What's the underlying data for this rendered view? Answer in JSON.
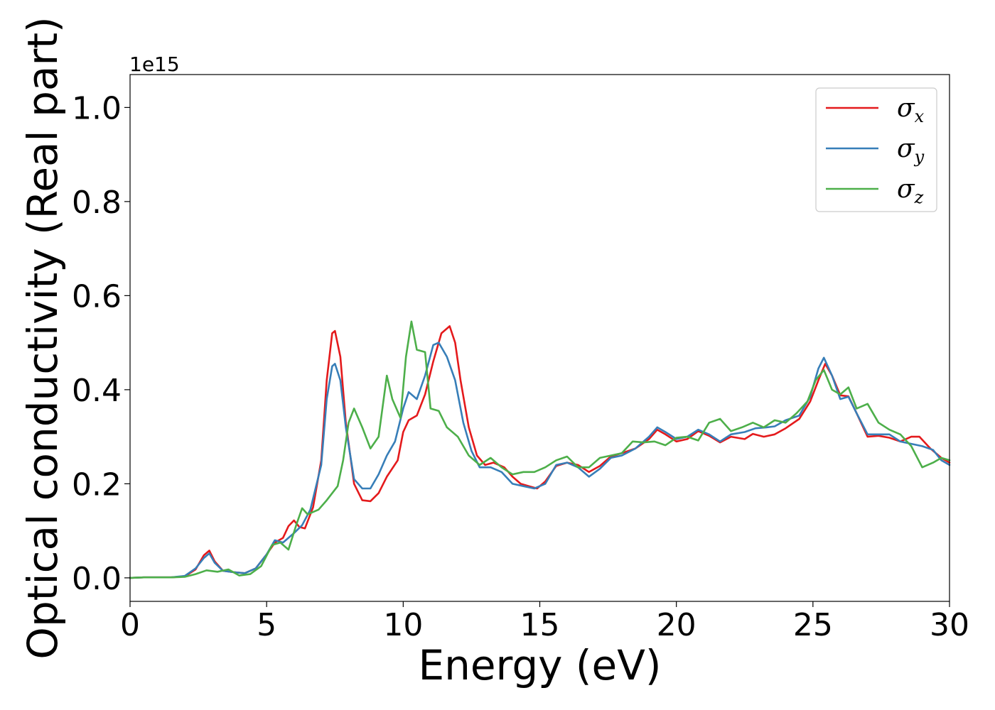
{
  "chart_data": {
    "type": "line",
    "xlabel": "Energy (eV)",
    "ylabel": "Optical conductivity (Real part)",
    "y_offset_label": "1e15",
    "xlim": [
      0,
      30
    ],
    "ylim": [
      -0.05,
      1.07
    ],
    "x_ticks": [
      "0",
      "5",
      "10",
      "15",
      "20",
      "25",
      "30"
    ],
    "x_tick_values": [
      0,
      5,
      10,
      15,
      20,
      25,
      30
    ],
    "y_ticks": [
      "0.0",
      "0.2",
      "0.4",
      "0.6",
      "0.8",
      "1.0"
    ],
    "y_tick_values": [
      0.0,
      0.2,
      0.4,
      0.6,
      0.8,
      1.0
    ],
    "grid": false,
    "legend_position": "top-right",
    "series": [
      {
        "name": "σ",
        "subscript": "x",
        "color": "#e41a1c",
        "points": [
          [
            0,
            0
          ],
          [
            0.5,
            0.001
          ],
          [
            1,
            0.001
          ],
          [
            1.5,
            0.001
          ],
          [
            2,
            0.003
          ],
          [
            2.4,
            0.018
          ],
          [
            2.7,
            0.048
          ],
          [
            2.9,
            0.058
          ],
          [
            3.1,
            0.035
          ],
          [
            3.4,
            0.015
          ],
          [
            3.8,
            0.012
          ],
          [
            4.2,
            0.01
          ],
          [
            4.6,
            0.02
          ],
          [
            5,
            0.05
          ],
          [
            5.3,
            0.075
          ],
          [
            5.6,
            0.085
          ],
          [
            5.8,
            0.11
          ],
          [
            6,
            0.122
          ],
          [
            6.2,
            0.108
          ],
          [
            6.4,
            0.105
          ],
          [
            6.7,
            0.15
          ],
          [
            7,
            0.25
          ],
          [
            7.2,
            0.42
          ],
          [
            7.4,
            0.52
          ],
          [
            7.5,
            0.525
          ],
          [
            7.7,
            0.47
          ],
          [
            7.9,
            0.33
          ],
          [
            8.2,
            0.2
          ],
          [
            8.5,
            0.165
          ],
          [
            8.8,
            0.163
          ],
          [
            9.1,
            0.18
          ],
          [
            9.4,
            0.215
          ],
          [
            9.8,
            0.25
          ],
          [
            10,
            0.31
          ],
          [
            10.2,
            0.335
          ],
          [
            10.5,
            0.345
          ],
          [
            10.8,
            0.39
          ],
          [
            11.1,
            0.46
          ],
          [
            11.4,
            0.52
          ],
          [
            11.7,
            0.535
          ],
          [
            11.9,
            0.5
          ],
          [
            12.1,
            0.42
          ],
          [
            12.4,
            0.32
          ],
          [
            12.7,
            0.26
          ],
          [
            13,
            0.24
          ],
          [
            13.3,
            0.245
          ],
          [
            13.7,
            0.235
          ],
          [
            14,
            0.215
          ],
          [
            14.3,
            0.2
          ],
          [
            14.6,
            0.195
          ],
          [
            14.9,
            0.19
          ],
          [
            15.2,
            0.205
          ],
          [
            15.6,
            0.238
          ],
          [
            16,
            0.245
          ],
          [
            16.4,
            0.24
          ],
          [
            16.8,
            0.225
          ],
          [
            17.2,
            0.238
          ],
          [
            17.6,
            0.258
          ],
          [
            18,
            0.265
          ],
          [
            18.5,
            0.275
          ],
          [
            19,
            0.295
          ],
          [
            19.3,
            0.315
          ],
          [
            19.6,
            0.305
          ],
          [
            20,
            0.29
          ],
          [
            20.4,
            0.295
          ],
          [
            20.8,
            0.312
          ],
          [
            21.2,
            0.302
          ],
          [
            21.6,
            0.288
          ],
          [
            22,
            0.3
          ],
          [
            22.5,
            0.295
          ],
          [
            22.8,
            0.306
          ],
          [
            23.2,
            0.3
          ],
          [
            23.6,
            0.305
          ],
          [
            24,
            0.318
          ],
          [
            24.5,
            0.338
          ],
          [
            24.9,
            0.375
          ],
          [
            25.2,
            0.42
          ],
          [
            25.45,
            0.455
          ],
          [
            25.7,
            0.43
          ],
          [
            26,
            0.388
          ],
          [
            26.3,
            0.386
          ],
          [
            26.6,
            0.35
          ],
          [
            27,
            0.3
          ],
          [
            27.4,
            0.302
          ],
          [
            27.8,
            0.298
          ],
          [
            28.2,
            0.29
          ],
          [
            28.6,
            0.3
          ],
          [
            28.9,
            0.3
          ],
          [
            29.3,
            0.275
          ],
          [
            29.7,
            0.255
          ],
          [
            30,
            0.245
          ]
        ]
      },
      {
        "name": "σ",
        "subscript": "y",
        "color": "#377eb8",
        "points": [
          [
            0,
            0
          ],
          [
            0.5,
            0.001
          ],
          [
            1,
            0.001
          ],
          [
            1.5,
            0.001
          ],
          [
            2,
            0.004
          ],
          [
            2.4,
            0.02
          ],
          [
            2.7,
            0.042
          ],
          [
            2.9,
            0.052
          ],
          [
            3.1,
            0.032
          ],
          [
            3.4,
            0.015
          ],
          [
            3.8,
            0.012
          ],
          [
            4.2,
            0.01
          ],
          [
            4.6,
            0.02
          ],
          [
            5,
            0.05
          ],
          [
            5.3,
            0.08
          ],
          [
            5.6,
            0.075
          ],
          [
            6,
            0.095
          ],
          [
            6.3,
            0.112
          ],
          [
            6.6,
            0.145
          ],
          [
            7,
            0.24
          ],
          [
            7.2,
            0.38
          ],
          [
            7.4,
            0.45
          ],
          [
            7.5,
            0.455
          ],
          [
            7.7,
            0.42
          ],
          [
            7.9,
            0.32
          ],
          [
            8.2,
            0.21
          ],
          [
            8.5,
            0.19
          ],
          [
            8.8,
            0.19
          ],
          [
            9.1,
            0.22
          ],
          [
            9.4,
            0.26
          ],
          [
            9.7,
            0.29
          ],
          [
            10,
            0.36
          ],
          [
            10.2,
            0.395
          ],
          [
            10.5,
            0.38
          ],
          [
            10.8,
            0.43
          ],
          [
            11.1,
            0.495
          ],
          [
            11.3,
            0.5
          ],
          [
            11.6,
            0.47
          ],
          [
            11.9,
            0.42
          ],
          [
            12.2,
            0.33
          ],
          [
            12.5,
            0.27
          ],
          [
            12.8,
            0.235
          ],
          [
            13.2,
            0.235
          ],
          [
            13.6,
            0.225
          ],
          [
            14,
            0.2
          ],
          [
            14.4,
            0.195
          ],
          [
            14.8,
            0.19
          ],
          [
            15.2,
            0.2
          ],
          [
            15.6,
            0.24
          ],
          [
            16,
            0.245
          ],
          [
            16.4,
            0.235
          ],
          [
            16.8,
            0.215
          ],
          [
            17.2,
            0.232
          ],
          [
            17.6,
            0.255
          ],
          [
            18,
            0.26
          ],
          [
            18.5,
            0.275
          ],
          [
            19,
            0.3
          ],
          [
            19.3,
            0.32
          ],
          [
            19.6,
            0.31
          ],
          [
            20,
            0.295
          ],
          [
            20.4,
            0.3
          ],
          [
            20.8,
            0.315
          ],
          [
            21.2,
            0.305
          ],
          [
            21.6,
            0.29
          ],
          [
            22,
            0.305
          ],
          [
            22.5,
            0.31
          ],
          [
            22.9,
            0.318
          ],
          [
            23.3,
            0.32
          ],
          [
            23.6,
            0.322
          ],
          [
            24,
            0.335
          ],
          [
            24.5,
            0.345
          ],
          [
            24.9,
            0.385
          ],
          [
            25.2,
            0.445
          ],
          [
            25.4,
            0.468
          ],
          [
            25.7,
            0.43
          ],
          [
            26,
            0.38
          ],
          [
            26.3,
            0.385
          ],
          [
            26.6,
            0.35
          ],
          [
            27,
            0.305
          ],
          [
            27.4,
            0.305
          ],
          [
            27.8,
            0.305
          ],
          [
            28.2,
            0.29
          ],
          [
            28.6,
            0.285
          ],
          [
            29,
            0.28
          ],
          [
            29.4,
            0.272
          ],
          [
            29.7,
            0.25
          ],
          [
            30,
            0.24
          ]
        ]
      },
      {
        "name": "σ",
        "subscript": "z",
        "color": "#4daf4a",
        "points": [
          [
            0,
            0
          ],
          [
            0.5,
            0.001
          ],
          [
            1,
            0.001
          ],
          [
            1.5,
            0.001
          ],
          [
            2,
            0.002
          ],
          [
            2.4,
            0.008
          ],
          [
            2.8,
            0.016
          ],
          [
            3.2,
            0.013
          ],
          [
            3.6,
            0.018
          ],
          [
            4,
            0.005
          ],
          [
            4.4,
            0.008
          ],
          [
            4.8,
            0.025
          ],
          [
            5.2,
            0.07
          ],
          [
            5.5,
            0.075
          ],
          [
            5.8,
            0.06
          ],
          [
            6.1,
            0.115
          ],
          [
            6.3,
            0.148
          ],
          [
            6.5,
            0.135
          ],
          [
            6.9,
            0.145
          ],
          [
            7.2,
            0.165
          ],
          [
            7.6,
            0.195
          ],
          [
            7.8,
            0.25
          ],
          [
            8,
            0.33
          ],
          [
            8.2,
            0.36
          ],
          [
            8.5,
            0.32
          ],
          [
            8.8,
            0.275
          ],
          [
            9.1,
            0.3
          ],
          [
            9.4,
            0.43
          ],
          [
            9.6,
            0.38
          ],
          [
            9.9,
            0.34
          ],
          [
            10.1,
            0.47
          ],
          [
            10.3,
            0.545
          ],
          [
            10.5,
            0.485
          ],
          [
            10.8,
            0.48
          ],
          [
            11,
            0.36
          ],
          [
            11.3,
            0.355
          ],
          [
            11.6,
            0.32
          ],
          [
            12,
            0.3
          ],
          [
            12.4,
            0.26
          ],
          [
            12.8,
            0.24
          ],
          [
            13.2,
            0.255
          ],
          [
            13.6,
            0.235
          ],
          [
            14,
            0.22
          ],
          [
            14.4,
            0.225
          ],
          [
            14.8,
            0.225
          ],
          [
            15.2,
            0.235
          ],
          [
            15.6,
            0.25
          ],
          [
            16,
            0.258
          ],
          [
            16.4,
            0.235
          ],
          [
            16.8,
            0.235
          ],
          [
            17.2,
            0.255
          ],
          [
            17.6,
            0.26
          ],
          [
            18,
            0.265
          ],
          [
            18.4,
            0.29
          ],
          [
            18.8,
            0.288
          ],
          [
            19.2,
            0.29
          ],
          [
            19.6,
            0.282
          ],
          [
            20,
            0.298
          ],
          [
            20.4,
            0.3
          ],
          [
            20.8,
            0.292
          ],
          [
            21.2,
            0.33
          ],
          [
            21.6,
            0.338
          ],
          [
            22,
            0.312
          ],
          [
            22.4,
            0.32
          ],
          [
            22.8,
            0.33
          ],
          [
            23.2,
            0.32
          ],
          [
            23.6,
            0.335
          ],
          [
            24,
            0.33
          ],
          [
            24.4,
            0.35
          ],
          [
            24.8,
            0.375
          ],
          [
            25.1,
            0.42
          ],
          [
            25.4,
            0.442
          ],
          [
            25.7,
            0.4
          ],
          [
            26,
            0.39
          ],
          [
            26.3,
            0.405
          ],
          [
            26.6,
            0.36
          ],
          [
            27,
            0.37
          ],
          [
            27.4,
            0.33
          ],
          [
            27.8,
            0.315
          ],
          [
            28.2,
            0.305
          ],
          [
            28.6,
            0.28
          ],
          [
            29,
            0.235
          ],
          [
            29.4,
            0.245
          ],
          [
            29.7,
            0.255
          ],
          [
            30,
            0.25
          ]
        ]
      }
    ]
  }
}
